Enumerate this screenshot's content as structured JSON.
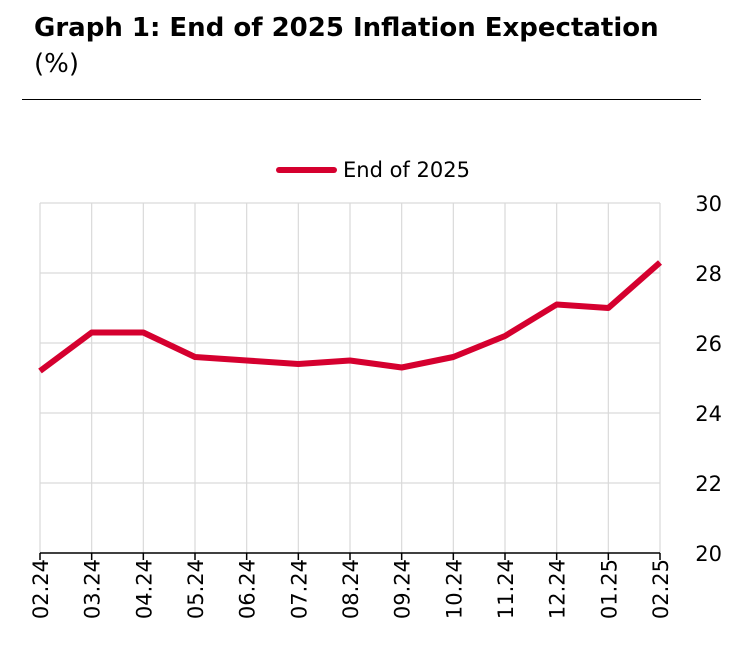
{
  "header": {
    "title_bold": "Graph 1: End of 2025 Inflation Expectation",
    "title_unit": "(%)"
  },
  "chart_data": {
    "type": "line",
    "title": "Graph 1: End of 2025 Inflation Expectation (%)",
    "categories": [
      "02.24",
      "03.24",
      "04.24",
      "05.24",
      "06.24",
      "07.24",
      "08.24",
      "09.24",
      "10.24",
      "11.24",
      "12.24",
      "01.25",
      "02.25"
    ],
    "series": [
      {
        "name": "End of 2025",
        "color": "#d5002f",
        "values": [
          25.2,
          26.3,
          26.3,
          25.6,
          25.5,
          25.4,
          25.5,
          25.3,
          25.6,
          26.2,
          27.1,
          27.0,
          28.3
        ]
      }
    ],
    "ylim": [
      20,
      30
    ],
    "yticks": [
      20,
      22,
      24,
      26,
      28,
      30
    ],
    "y_axis_position": "right",
    "grid": true,
    "legend_position": "top-center",
    "xlabel": "",
    "ylabel": ""
  }
}
